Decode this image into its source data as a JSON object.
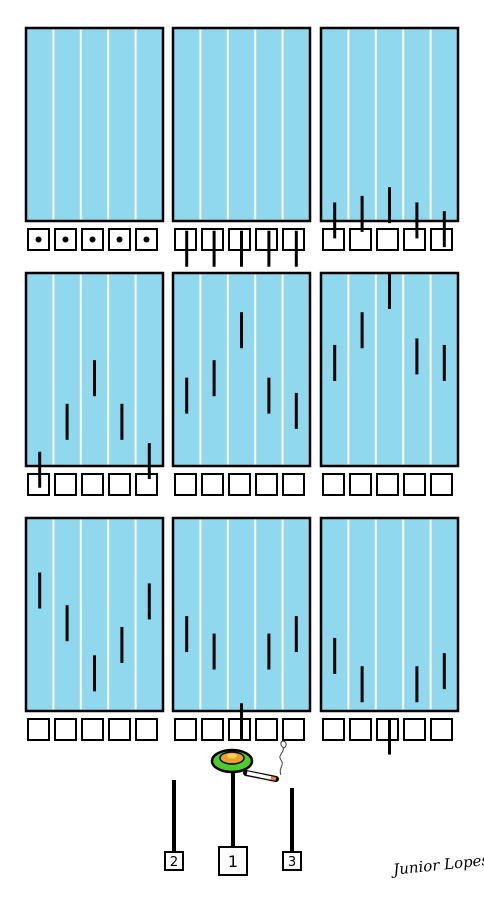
{
  "colors": {
    "pool": "#8fd8ee",
    "lane_line": "#fffbe0",
    "ink": "#000000",
    "paper": "#ffffff",
    "lollipop_outer": "#4ccc2a",
    "lollipop_inner": "#f0a020",
    "cigarette_tip": "#e87a30"
  },
  "pools": [
    {
      "dots": true,
      "swimmers": [
        null,
        null,
        null,
        null,
        null
      ]
    },
    {
      "dots": false,
      "swimmers": [
        0.07,
        0.07,
        0.07,
        0.07,
        0.07
      ]
    },
    {
      "dots": false,
      "swimmers": [
        0.2,
        0.23,
        0.27,
        0.2,
        0.16
      ]
    },
    {
      "dots": false,
      "swimmers": [
        0.18,
        0.4,
        0.6,
        0.4,
        0.22
      ]
    },
    {
      "dots": false,
      "swimmers": [
        0.52,
        0.6,
        0.82,
        0.52,
        0.45
      ]
    },
    {
      "dots": false,
      "swimmers": [
        0.67,
        0.82,
        1.0,
        0.7,
        0.67
      ]
    },
    {
      "dots": false,
      "swimmers": [
        0.75,
        0.6,
        0.37,
        0.5,
        0.7
      ]
    },
    {
      "dots": false,
      "swimmers": [
        0.55,
        0.47,
        0.15,
        0.47,
        0.55
      ]
    },
    {
      "dots": false,
      "swimmers": [
        0.45,
        0.32,
        0.08,
        0.32,
        0.38
      ]
    }
  ],
  "podium": [
    {
      "place": "2",
      "pole": "short"
    },
    {
      "place": "1",
      "pole": "tall"
    },
    {
      "place": "3",
      "pole": "short"
    }
  ],
  "signature": "Junior Lopes"
}
